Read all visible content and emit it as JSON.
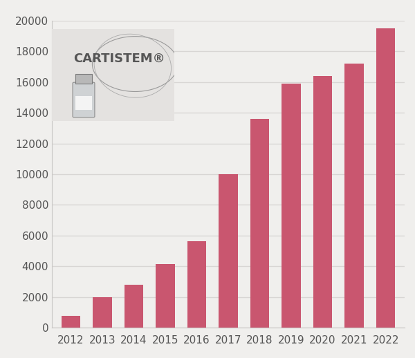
{
  "chart_data": {
    "type": "bar",
    "categories": [
      "2012",
      "2013",
      "2014",
      "2015",
      "2016",
      "2017",
      "2018",
      "2019",
      "2020",
      "2021",
      "2022"
    ],
    "values": [
      750,
      2000,
      2800,
      4150,
      5650,
      10000,
      13600,
      15900,
      16400,
      17200,
      19500
    ],
    "color": "#c9566f",
    "ylim": [
      0,
      20000
    ],
    "yticks": [
      0,
      2000,
      4000,
      6000,
      8000,
      10000,
      12000,
      14000,
      16000,
      18000,
      20000
    ],
    "grid": true,
    "annotations": [
      "CARTISTEM®"
    ]
  }
}
